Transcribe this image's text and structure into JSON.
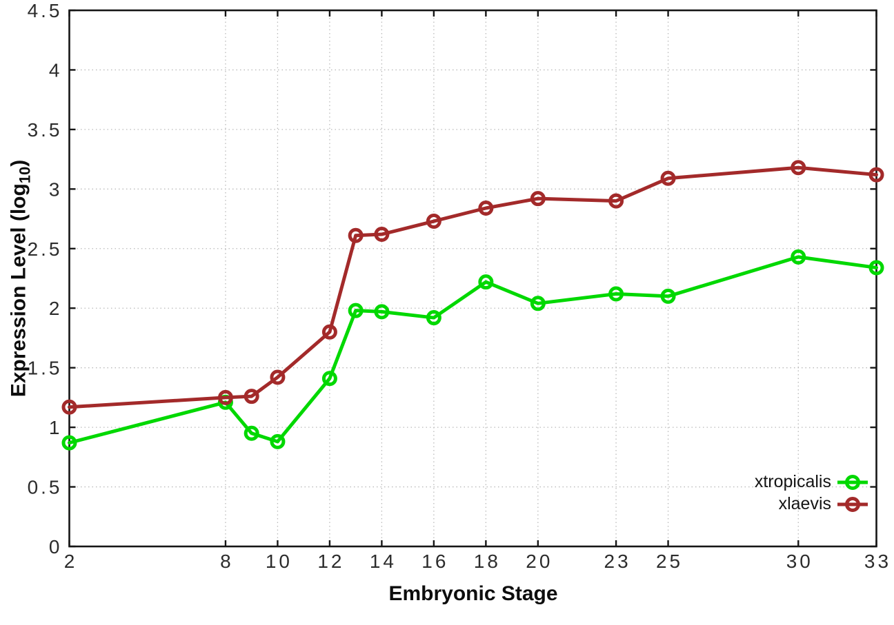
{
  "chart_data": {
    "type": "line",
    "title": "",
    "xlabel": "Embryonic Stage",
    "ylabel": "Expression Level (log10)",
    "ylabel_parts": {
      "prefix": "Expression Level (log",
      "subscript": "10",
      "suffix": ")"
    },
    "x": [
      2,
      8,
      9,
      10,
      12,
      13,
      14,
      16,
      18,
      20,
      23,
      25,
      30,
      33
    ],
    "series": [
      {
        "name": "xtropicalis",
        "color": "#00d800",
        "values": [
          0.87,
          1.21,
          0.95,
          0.88,
          1.41,
          1.98,
          1.97,
          1.92,
          2.22,
          2.04,
          2.12,
          2.1,
          2.43,
          2.34
        ]
      },
      {
        "name": "xlaevis",
        "color": "#a32a2a",
        "values": [
          1.17,
          1.25,
          1.26,
          1.42,
          1.8,
          2.61,
          2.62,
          2.73,
          2.84,
          2.92,
          2.9,
          3.09,
          3.18,
          3.12
        ]
      }
    ],
    "xlim": [
      2,
      33
    ],
    "ylim": [
      0,
      4.5
    ],
    "x_ticks": [
      2,
      8,
      10,
      12,
      14,
      16,
      18,
      20,
      23,
      25,
      30,
      33
    ],
    "x_tick_labels": [
      "2",
      "8",
      "10",
      "12",
      "14",
      "16",
      "18",
      "20",
      "23",
      "25",
      "30",
      "33"
    ],
    "y_ticks": [
      0,
      0.5,
      1,
      1.5,
      2,
      2.5,
      3,
      3.5,
      4,
      4.5
    ],
    "y_tick_labels": [
      "0",
      "0.5",
      "1",
      "1.5",
      "2",
      "2.5",
      "3",
      "3.5",
      "4",
      "4.5"
    ],
    "grid": true,
    "legend_position": "inside bottom-right",
    "legend": [
      "xtropicalis",
      "xlaevis"
    ]
  },
  "style": {
    "background": "#ffffff",
    "axis_color": "#161616",
    "grid_color": "#b9b9b9",
    "tick_label_color": "#2c2c2c",
    "line_width": 5,
    "marker_radius": 8.5,
    "marker_stroke": 5
  }
}
